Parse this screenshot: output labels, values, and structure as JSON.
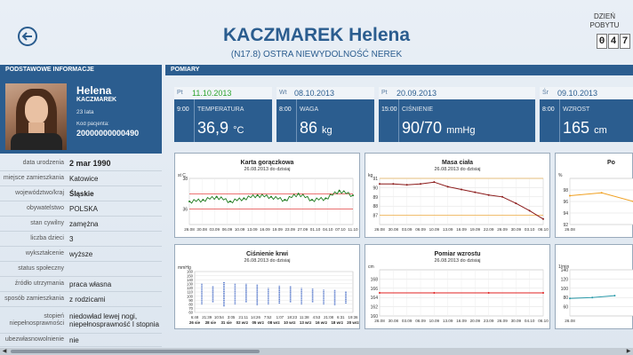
{
  "header": {
    "name": "KACZMAREK Helena",
    "diagnosis": "(N17.8)  OSTRA NIEWYDOLNOŚĆ NEREK",
    "day_label": "DZIEŃ POBYTU",
    "day_digits": [
      "0",
      "4",
      "7"
    ]
  },
  "sections": {
    "basic": "PODSTAWOWE INFORMACJE",
    "measurements": "POMIARY"
  },
  "patient": {
    "first_name": "Helena",
    "last_name": "KACZMAREK",
    "age": "23 lata",
    "code_label": "Kod pacjenta:",
    "code": "20000000000490"
  },
  "info": [
    {
      "label": "data urodzenia",
      "value": "2 mar 1990"
    },
    {
      "label": "miejsce zamieszkania",
      "value": "Katowice"
    },
    {
      "label": "województwo/kraj",
      "value": "Śląskie"
    },
    {
      "label": "obywatelstwo",
      "value": "POLSKA"
    },
    {
      "label": "stan cywilny",
      "value": "zamężna"
    },
    {
      "label": "liczba dzieci",
      "value": "3"
    },
    {
      "label": "wykształcenie",
      "value": "wyższe"
    },
    {
      "label": "status społeczny",
      "value": ""
    },
    {
      "label": "źródło utrzymania",
      "value": "praca własna"
    },
    {
      "label": "sposób zamieszkania",
      "value": "z rodzicami"
    },
    {
      "label": "stopień niepełnosprawności",
      "value": "niedowład lewej nogi, niepełnosprawność I stopnia"
    },
    {
      "label": "ubezwłasnowolnienie",
      "value": "nie"
    }
  ],
  "measures": [
    {
      "dow": "Pt",
      "date": "11.10.2013",
      "time": "9:00",
      "label": "TEMPERATURA",
      "value": "36,9",
      "unit": "°C"
    },
    {
      "dow": "Wt",
      "date": "08.10.2013",
      "time": "8:00",
      "label": "WAGA",
      "value": "86",
      "unit": "kg"
    },
    {
      "dow": "Pt",
      "date": "20.09.2013",
      "time": "15:00",
      "label": "CIŚNIENIE",
      "value": "90/70",
      "unit": "mmHg"
    },
    {
      "dow": "Śr",
      "date": "09.10.2013",
      "time": "8:00",
      "label": "WZROST",
      "value": "165",
      "unit": "cm"
    }
  ],
  "colors": {
    "primary": "#2b5d8f",
    "series_green": "#1e7b1e",
    "series_red": "#e02020",
    "series_maroon": "#8b1a1a",
    "series_orange": "#f0a020",
    "series_blue": "#4a6fc8",
    "series_teal": "#2a9aaa"
  },
  "chart_data": [
    {
      "type": "line",
      "title": "Karta gorączkowa",
      "subtitle": "26.08.2013 do dzisiaj",
      "ylabel": "st C",
      "ylim": [
        35,
        38
      ],
      "yticks": [
        36,
        38
      ],
      "reference_lines": [
        36,
        37
      ],
      "x": [
        "26.08",
        "30.08",
        "03.09",
        "07.09",
        "11.09",
        "15.09",
        "19.09",
        "23.09",
        "27.09",
        "01.10",
        "05.10",
        "09.10",
        "13.10"
      ],
      "xlabels": [
        "26.08",
        "30.08",
        "03.09",
        "06.09",
        "10.09",
        "13.09",
        "16.09",
        "19.09",
        "23.09",
        "27.09",
        "01.10",
        "04.10",
        "07.10",
        "11.10"
      ],
      "series": [
        {
          "values": [
            36.5,
            36.6,
            36.8,
            36.5,
            36.7,
            36.9,
            36.8,
            36.6,
            37.0,
            36.6,
            36.7,
            37.2,
            36.9
          ]
        }
      ]
    },
    {
      "type": "line",
      "title": "Masa ciała",
      "subtitle": "26.08.2013 do dzisiaj",
      "ylabel": "kg",
      "ylim": [
        86,
        91
      ],
      "yticks": [
        87,
        88,
        89,
        90,
        91
      ],
      "reference_lines": [
        87,
        91
      ],
      "xlabels": [
        "26.08",
        "30.08",
        "03.09",
        "06.09",
        "10.09",
        "13.09",
        "16.09",
        "19.09",
        "22.09",
        "26.09",
        "30.09",
        "03.10",
        "06.10"
      ],
      "series": [
        {
          "values": [
            90.4,
            90.4,
            90.3,
            90.4,
            90.6,
            90.1,
            89.8,
            89.5,
            89.2,
            89.0,
            88.3,
            87.5,
            86.6
          ]
        }
      ]
    },
    {
      "type": "line",
      "title": "Po",
      "subtitle": "",
      "ylabel": "%",
      "ylim": [
        92,
        100
      ],
      "yticks": [
        92,
        94,
        96,
        98
      ],
      "xlabels": [
        "26.08",
        "30.08"
      ],
      "series": [
        {
          "values": [
            97,
            97.5,
            96
          ]
        }
      ]
    },
    {
      "type": "bar",
      "title": "Ciśnienie krwi",
      "subtitle": "26.08.2013 do dzisiaj",
      "ylabel": "mmHg",
      "ylim": [
        60,
        160
      ],
      "yticks": [
        60,
        70,
        80,
        90,
        100,
        110,
        120,
        130,
        140,
        150,
        160
      ],
      "xlabels_top": [
        "6:48",
        "21:39",
        "10:54",
        "3:05",
        "21:11",
        "14:26",
        "7:52",
        "1:07",
        "18:23",
        "11:38",
        "4:53",
        "21:08",
        "6:31",
        "19:36"
      ],
      "xlabels_bottom": [
        "26 sie",
        "28 sie",
        "31 sie",
        "02 wrz",
        "05 wrz",
        "08 wrz",
        "10 wrz",
        "13 wrz",
        "16 wrz",
        "18 wrz",
        "20 wrz"
      ],
      "series": [
        {
          "name": "range",
          "values": [
            [
              80,
              130
            ],
            [
              85,
              125
            ],
            [
              75,
              135
            ],
            [
              80,
              130
            ],
            [
              85,
              130
            ],
            [
              78,
              128
            ],
            [
              80,
              120
            ],
            [
              82,
              126
            ],
            [
              85,
              125
            ],
            [
              80,
              120
            ],
            [
              85,
              118
            ],
            [
              80,
              116
            ],
            [
              78,
              115
            ],
            [
              82,
              112
            ]
          ]
        }
      ]
    },
    {
      "type": "line",
      "title": "Pomiar wzrostu",
      "subtitle": "26.08.2013 do dzisiaj",
      "ylabel": "cm",
      "ylim": [
        160,
        170
      ],
      "yticks": [
        160,
        162,
        164,
        166,
        168
      ],
      "xlabels": [
        "26.08",
        "30.08",
        "03.09",
        "06.09",
        "10.09",
        "13.09",
        "16.09",
        "20.09",
        "23.09",
        "26.09",
        "30.09",
        "04.10",
        "06.10"
      ],
      "series": [
        {
          "values": [
            165,
            165,
            165,
            165
          ]
        }
      ]
    },
    {
      "type": "line",
      "title": "",
      "subtitle": "",
      "ylabel": "1/min",
      "ylim": [
        40,
        140
      ],
      "yticks": [
        60,
        80,
        100,
        120,
        140
      ],
      "xlabels": [
        "26.08",
        "30.08"
      ],
      "series": [
        {
          "values": [
            78,
            80,
            84
          ]
        }
      ]
    }
  ]
}
